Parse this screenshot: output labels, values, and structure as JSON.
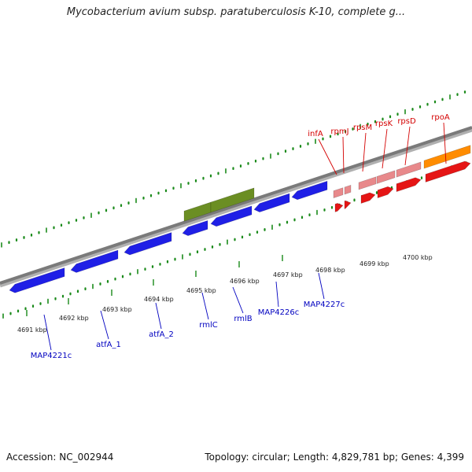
{
  "title": "Mycobacterium avium subsp. paratuberculosis K-10, complete g...",
  "footer": {
    "accession": "Accession: NC_002944",
    "summary": "Topology: circular; Length: 4,829,781 bp; Genes: 4,399"
  },
  "colors": {
    "minus_strand": "#1f1fe6",
    "highlight": "#6b8e23",
    "plus_strand": "#e51515",
    "plus_strand_light": "#e8898b",
    "orange": "#ff8c00",
    "tick_green": "#1a8a1a",
    "label_blue": "#0000c0",
    "label_red": "#d40000"
  },
  "ticks_upper": [
    "4698 kbp",
    "4699 kbp",
    "4700 kbp"
  ],
  "ticks_lower": [
    "4691 kbp",
    "4692 kbp",
    "4693 kbp",
    "4694 kbp",
    "4695 kbp",
    "4696 kbp",
    "4697 kbp"
  ],
  "genes_minus": [
    "MAP4221c",
    "atfA_1",
    "atfA_2",
    "rmlC",
    "rmlB",
    "MAP4226c",
    "MAP4227c"
  ],
  "genes_plus": [
    "infA",
    "rpmJ",
    "rpsM",
    "rpsK",
    "rpsD",
    "rpoA"
  ]
}
